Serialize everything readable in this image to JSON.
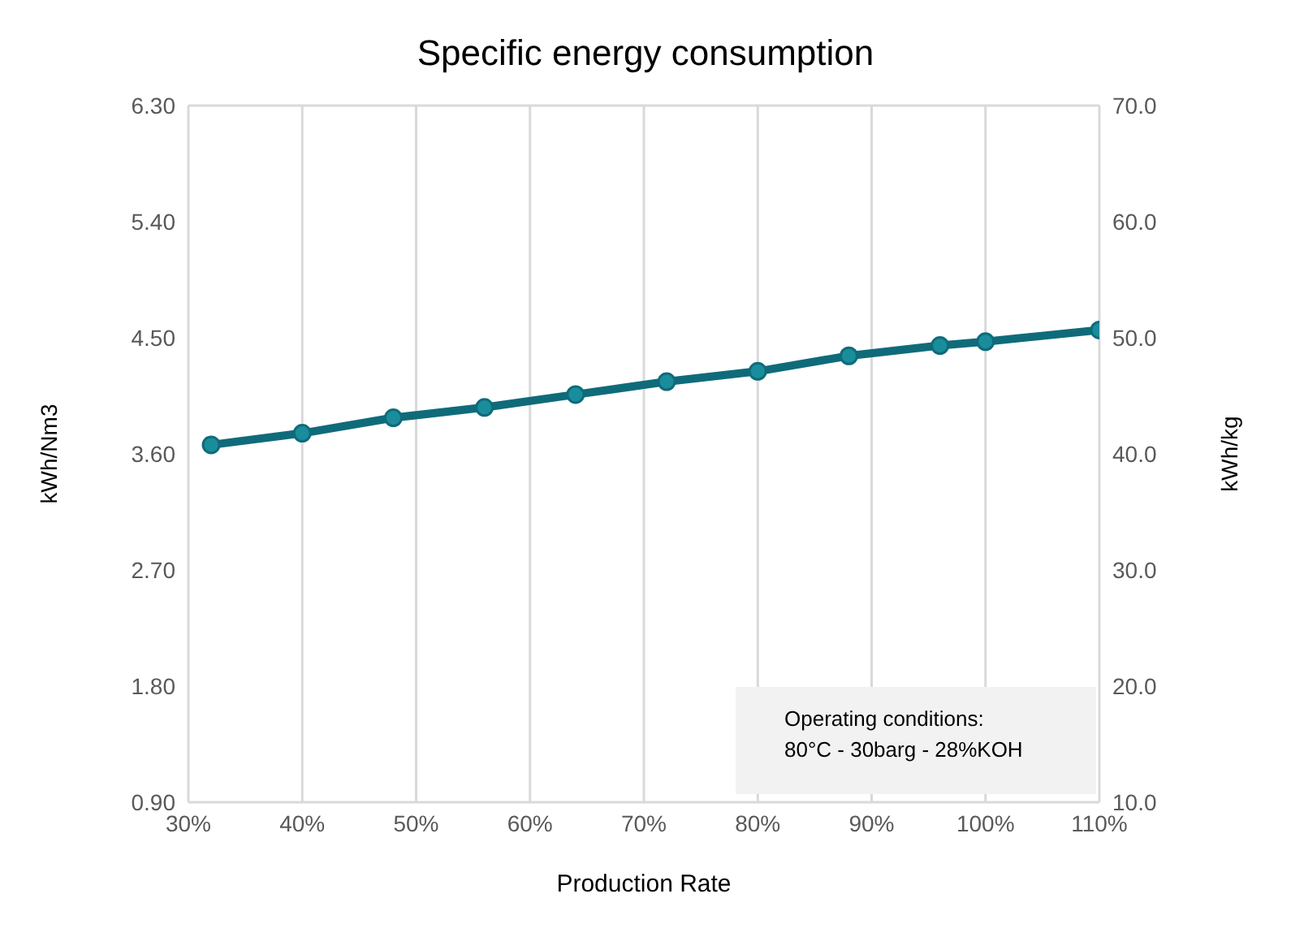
{
  "chart_data": {
    "type": "line",
    "title": "Specific energy consumption",
    "xlabel": "Production Rate",
    "ylabel": "kWh/Nm3",
    "y2label": "kWh/kg",
    "x": [
      32,
      40,
      48,
      56,
      64,
      72,
      80,
      88,
      96,
      100,
      110
    ],
    "series": [
      {
        "color": "#0f6b7a",
        "values": [
          3.67,
          3.76,
          3.88,
          3.96,
          4.06,
          4.16,
          4.24,
          4.36,
          4.44,
          4.47,
          4.56
        ]
      }
    ],
    "xlim": [
      30,
      110
    ],
    "xticks": [
      {
        "value": 30,
        "label": "30%"
      },
      {
        "value": 40,
        "label": "40%"
      },
      {
        "value": 50,
        "label": "50%"
      },
      {
        "value": 60,
        "label": "60%"
      },
      {
        "value": 70,
        "label": "70%"
      },
      {
        "value": 80,
        "label": "80%"
      },
      {
        "value": 90,
        "label": "90%"
      },
      {
        "value": 100,
        "label": "100%"
      },
      {
        "value": 110,
        "label": "110%"
      }
    ],
    "ylim": [
      0.9,
      6.3
    ],
    "yticks": [
      {
        "value": 0.9,
        "label": "0.90"
      },
      {
        "value": 1.8,
        "label": "1.80"
      },
      {
        "value": 2.7,
        "label": "2.70"
      },
      {
        "value": 3.6,
        "label": "3.60"
      },
      {
        "value": 4.5,
        "label": "4.50"
      },
      {
        "value": 5.4,
        "label": "5.40"
      },
      {
        "value": 6.3,
        "label": "6.30"
      }
    ],
    "y2lim": [
      10,
      70
    ],
    "y2ticks": [
      {
        "value": 10,
        "label": "10.0"
      },
      {
        "value": 20,
        "label": "20.0"
      },
      {
        "value": 30,
        "label": "30.0"
      },
      {
        "value": 40,
        "label": "40.0"
      },
      {
        "value": 50,
        "label": "50.0"
      },
      {
        "value": 60,
        "label": "60.0"
      },
      {
        "value": 70,
        "label": "70.0"
      }
    ],
    "grid": true,
    "marker": "circle",
    "line_style": "solid",
    "legend": false,
    "annotations": [
      "Operating conditions:\n80°C - 30barg - 28%KOH"
    ]
  }
}
